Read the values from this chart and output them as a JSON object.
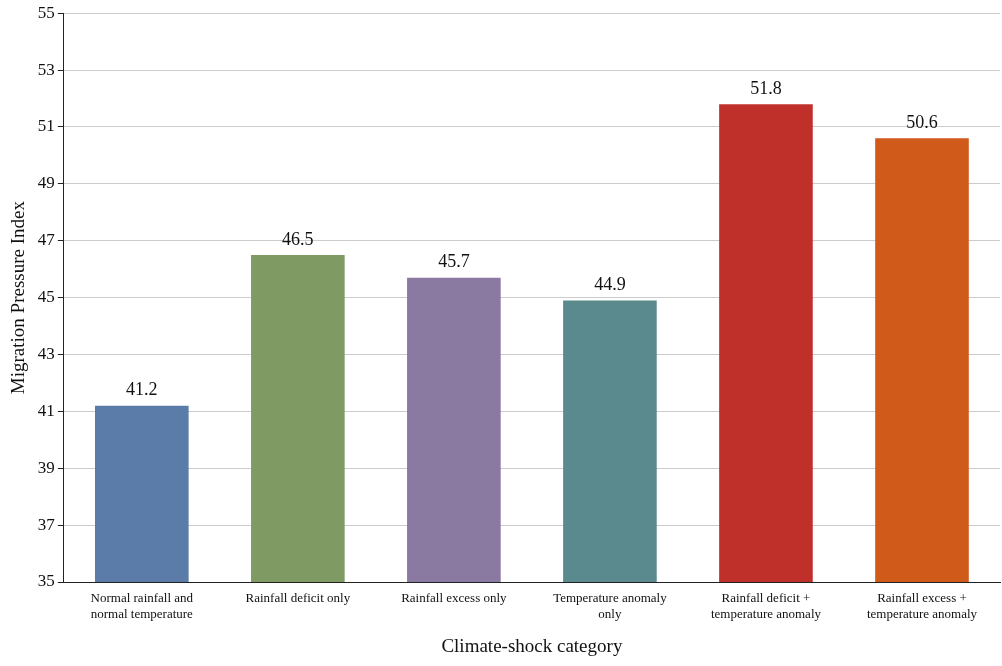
{
  "chart_data": {
    "type": "bar",
    "xlabel": "Climate-shock category",
    "ylabel": "Migration Pressure Index",
    "categories": [
      "Normal rainfall and normal temperature",
      "Rainfall deficit only",
      "Rainfall excess only",
      "Temperature anomaly only",
      "Rainfall deficit + temperature anomaly",
      "Rainfall excess + temperature anomaly"
    ],
    "values": [
      41.2,
      46.5,
      45.7,
      44.9,
      51.8,
      50.6
    ],
    "colors": [
      "#5b7ba8",
      "#7f9a63",
      "#8a79a0",
      "#5a8a8e",
      "#c0302a",
      "#d05a1a"
    ],
    "ylim": [
      35,
      55
    ],
    "yticks": [
      35,
      37,
      39,
      41,
      43,
      45,
      47,
      49,
      51,
      53,
      55
    ],
    "grid": "y",
    "data_labels": true
  }
}
